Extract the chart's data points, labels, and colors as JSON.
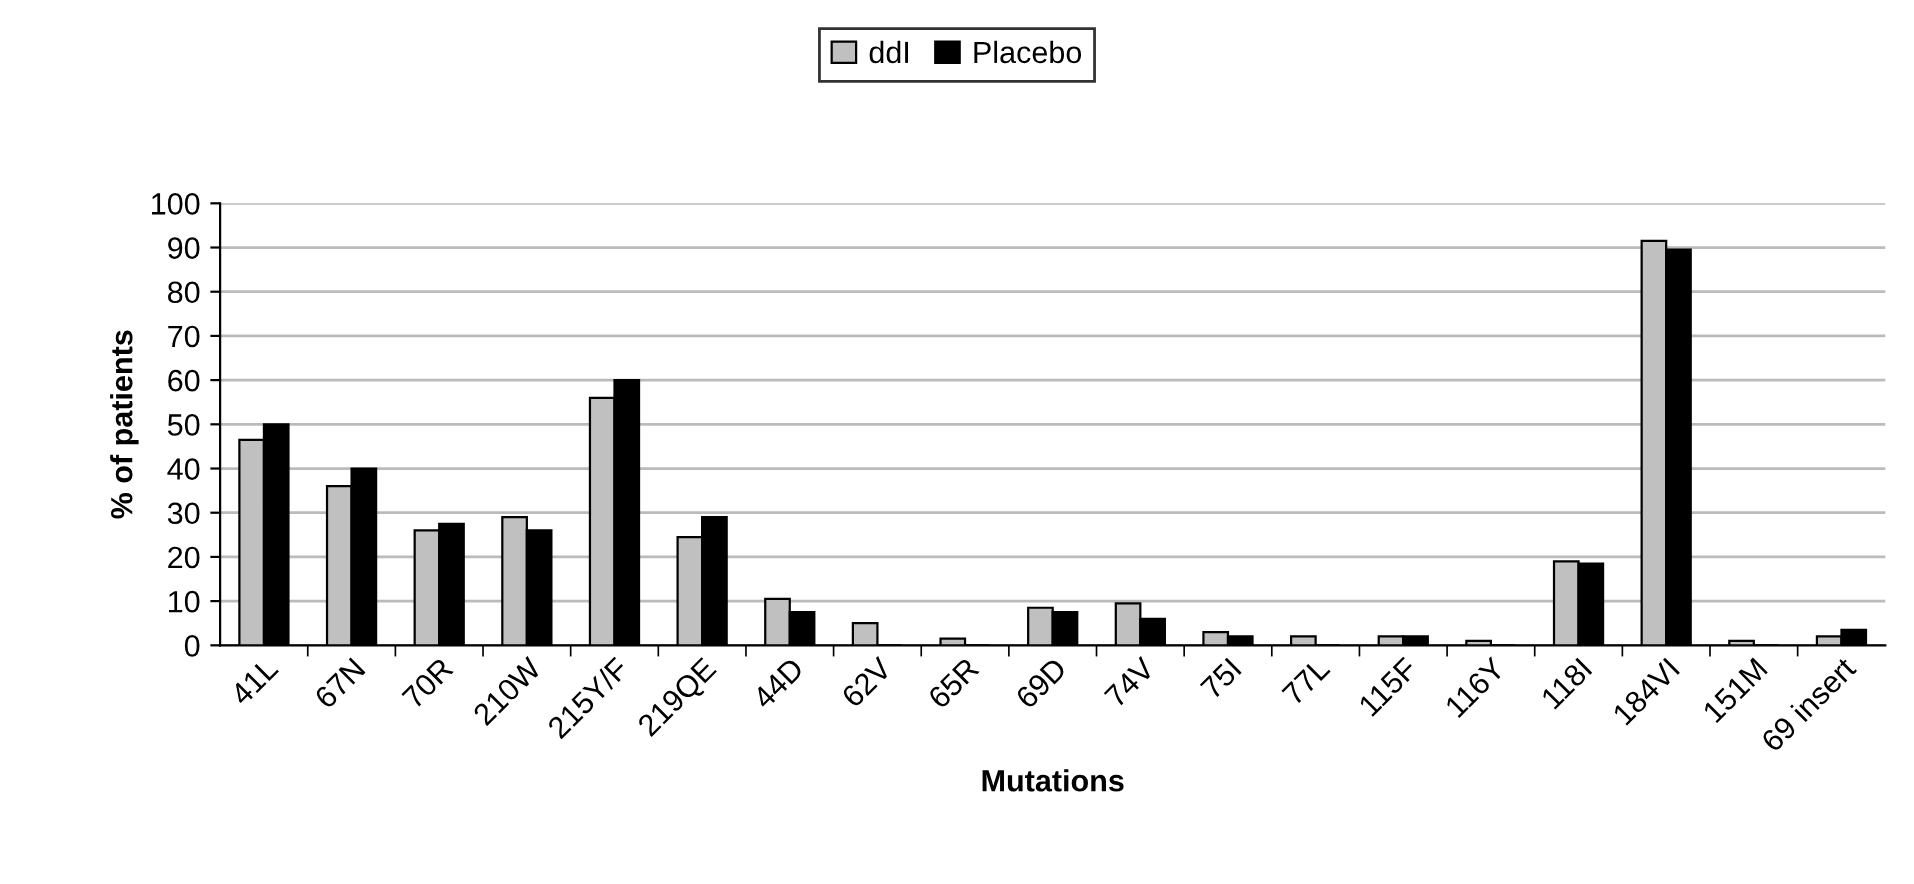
{
  "chart_data": {
    "type": "bar",
    "xlabel": "Mutations",
    "ylabel": "% of patients",
    "categories": [
      "41L",
      "67N",
      "70R",
      "210W",
      "215Y/F",
      "219QE",
      "44D",
      "62V",
      "65R",
      "69D",
      "74V",
      "75I",
      "77L",
      "115F",
      "116Y",
      "118I",
      "184VI",
      "151M",
      "69 insert"
    ],
    "series": [
      {
        "name": "ddI",
        "color": "#c0c0c0",
        "values": [
          46.5,
          36,
          26,
          29,
          56,
          24.5,
          10.5,
          5,
          1.5,
          8.5,
          9.5,
          3,
          2,
          2,
          1,
          19,
          91.5,
          1,
          2
        ]
      },
      {
        "name": "Placebo",
        "color": "#000000",
        "values": [
          50,
          40,
          27.5,
          26,
          60,
          29,
          7.5,
          0,
          0,
          7.5,
          6,
          2,
          0,
          2,
          0,
          18.5,
          89.5,
          0,
          3.5
        ]
      }
    ],
    "ylim": [
      0,
      100
    ],
    "yticks": [
      0,
      10,
      20,
      30,
      40,
      50,
      60,
      70,
      80,
      90,
      100
    ],
    "grid": "y",
    "legend": "top"
  }
}
